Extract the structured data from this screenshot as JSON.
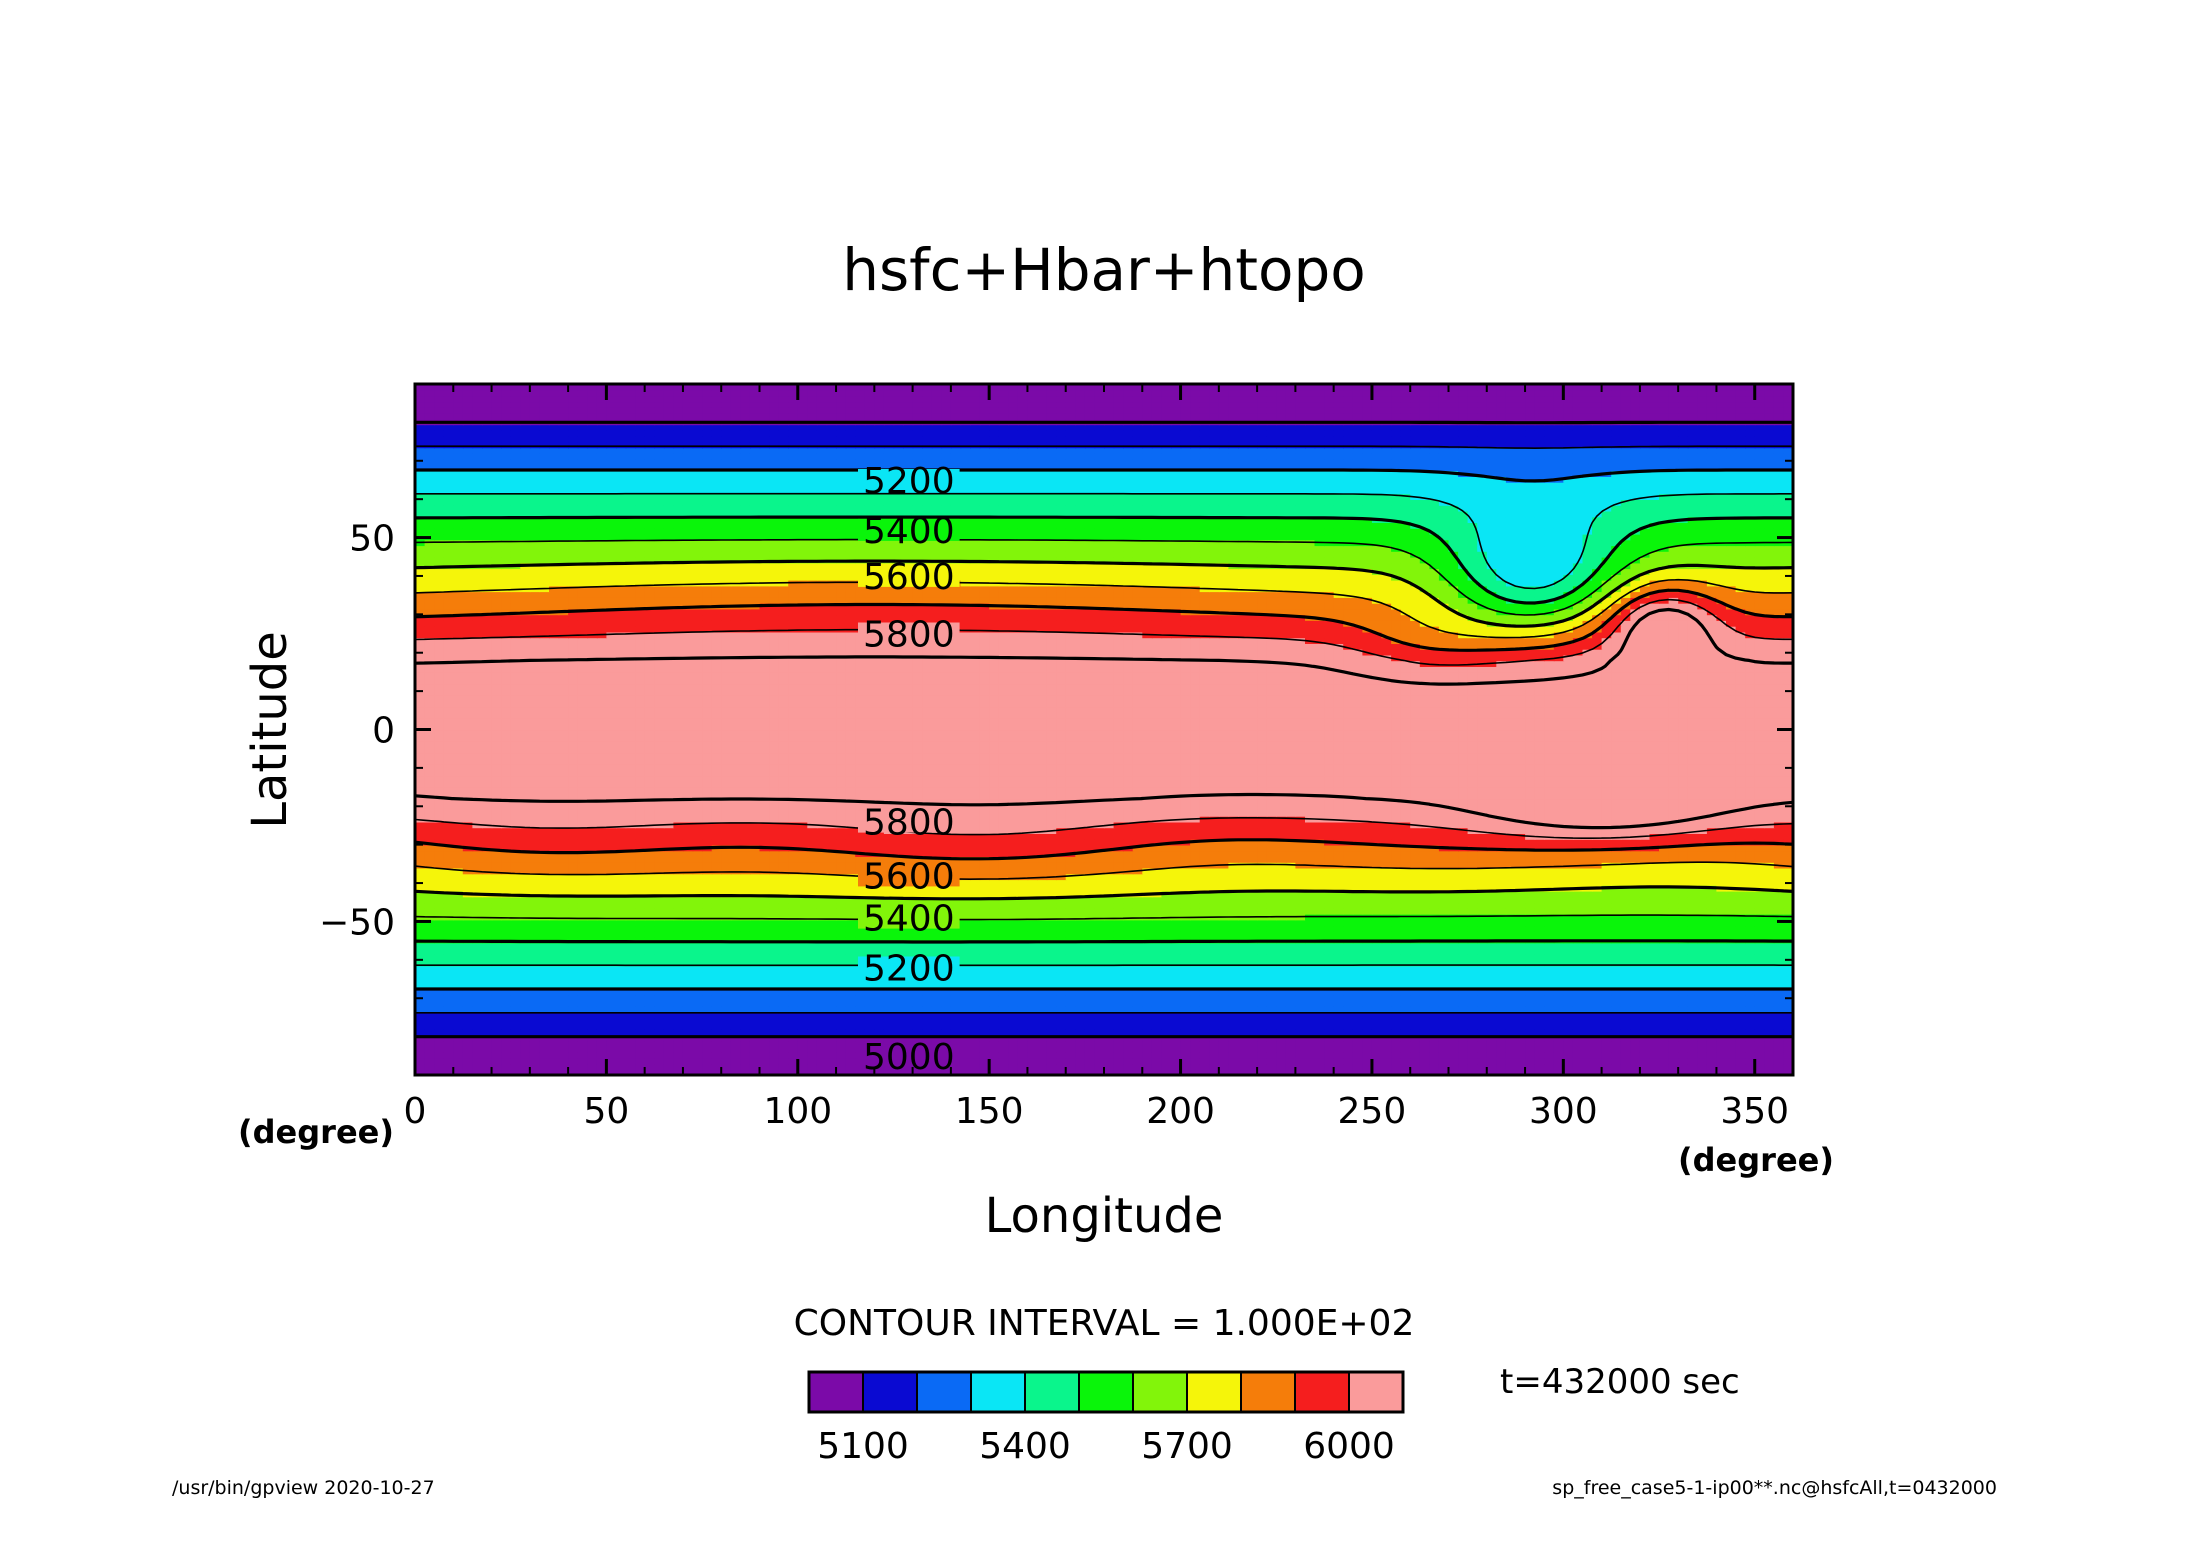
{
  "chart_data": {
    "type": "contour",
    "title": "hsfc+Hbar+htopo",
    "xlabel": "Longitude",
    "ylabel": "Latitude",
    "x_unit": "(degree)",
    "y_unit": "(degree)",
    "xlim": [
      0,
      360
    ],
    "ylim": [
      -90,
      90
    ],
    "x_ticks": [
      0,
      50,
      100,
      150,
      200,
      250,
      300,
      350
    ],
    "x_tick_labels": [
      "0",
      "50",
      "100",
      "150",
      "200",
      "250",
      "300",
      "350"
    ],
    "y_ticks": [
      -50,
      0,
      50
    ],
    "y_tick_labels": [
      "−50",
      "0",
      "50"
    ],
    "contour_interval_text": "CONTOUR INTERVAL = 1.000E+02",
    "time_label": "t=432000 sec",
    "contour_levels": [
      5000,
      5100,
      5200,
      5300,
      5400,
      5500,
      5600,
      5700,
      5800,
      5900,
      6000
    ],
    "contour_labels": [
      {
        "text": "5200",
        "lon": 129,
        "lat": 65
      },
      {
        "text": "5400",
        "lon": 129,
        "lat": 52
      },
      {
        "text": "5600",
        "lon": 129,
        "lat": 40
      },
      {
        "text": "5800",
        "lon": 129,
        "lat": 25
      },
      {
        "text": "5800",
        "lon": 129,
        "lat": -24
      },
      {
        "text": "5600",
        "lon": 129,
        "lat": -38
      },
      {
        "text": "5400",
        "lon": 129,
        "lat": -49
      },
      {
        "text": "5200",
        "lon": 129,
        "lat": -62
      },
      {
        "text": "5000",
        "lon": 129,
        "lat": -85
      }
    ],
    "colorbar": {
      "colors": [
        "#7b0aa8",
        "#0a0ad2",
        "#0a6af5",
        "#0ae6f5",
        "#0af58c",
        "#0af50a",
        "#82f50a",
        "#f5f50a",
        "#f57d0a",
        "#f51e1e",
        "#fa9b9b"
      ],
      "tick_labels": [
        "5100",
        "5400",
        "5700",
        "6000"
      ],
      "tick_values": [
        5100,
        5400,
        5700,
        6000
      ]
    }
  },
  "footer": {
    "left": "/usr/bin/gpview   2020-10-27",
    "right": "sp_free_case5-1-ip00**.nc@hsfcAll,t=0432000"
  }
}
